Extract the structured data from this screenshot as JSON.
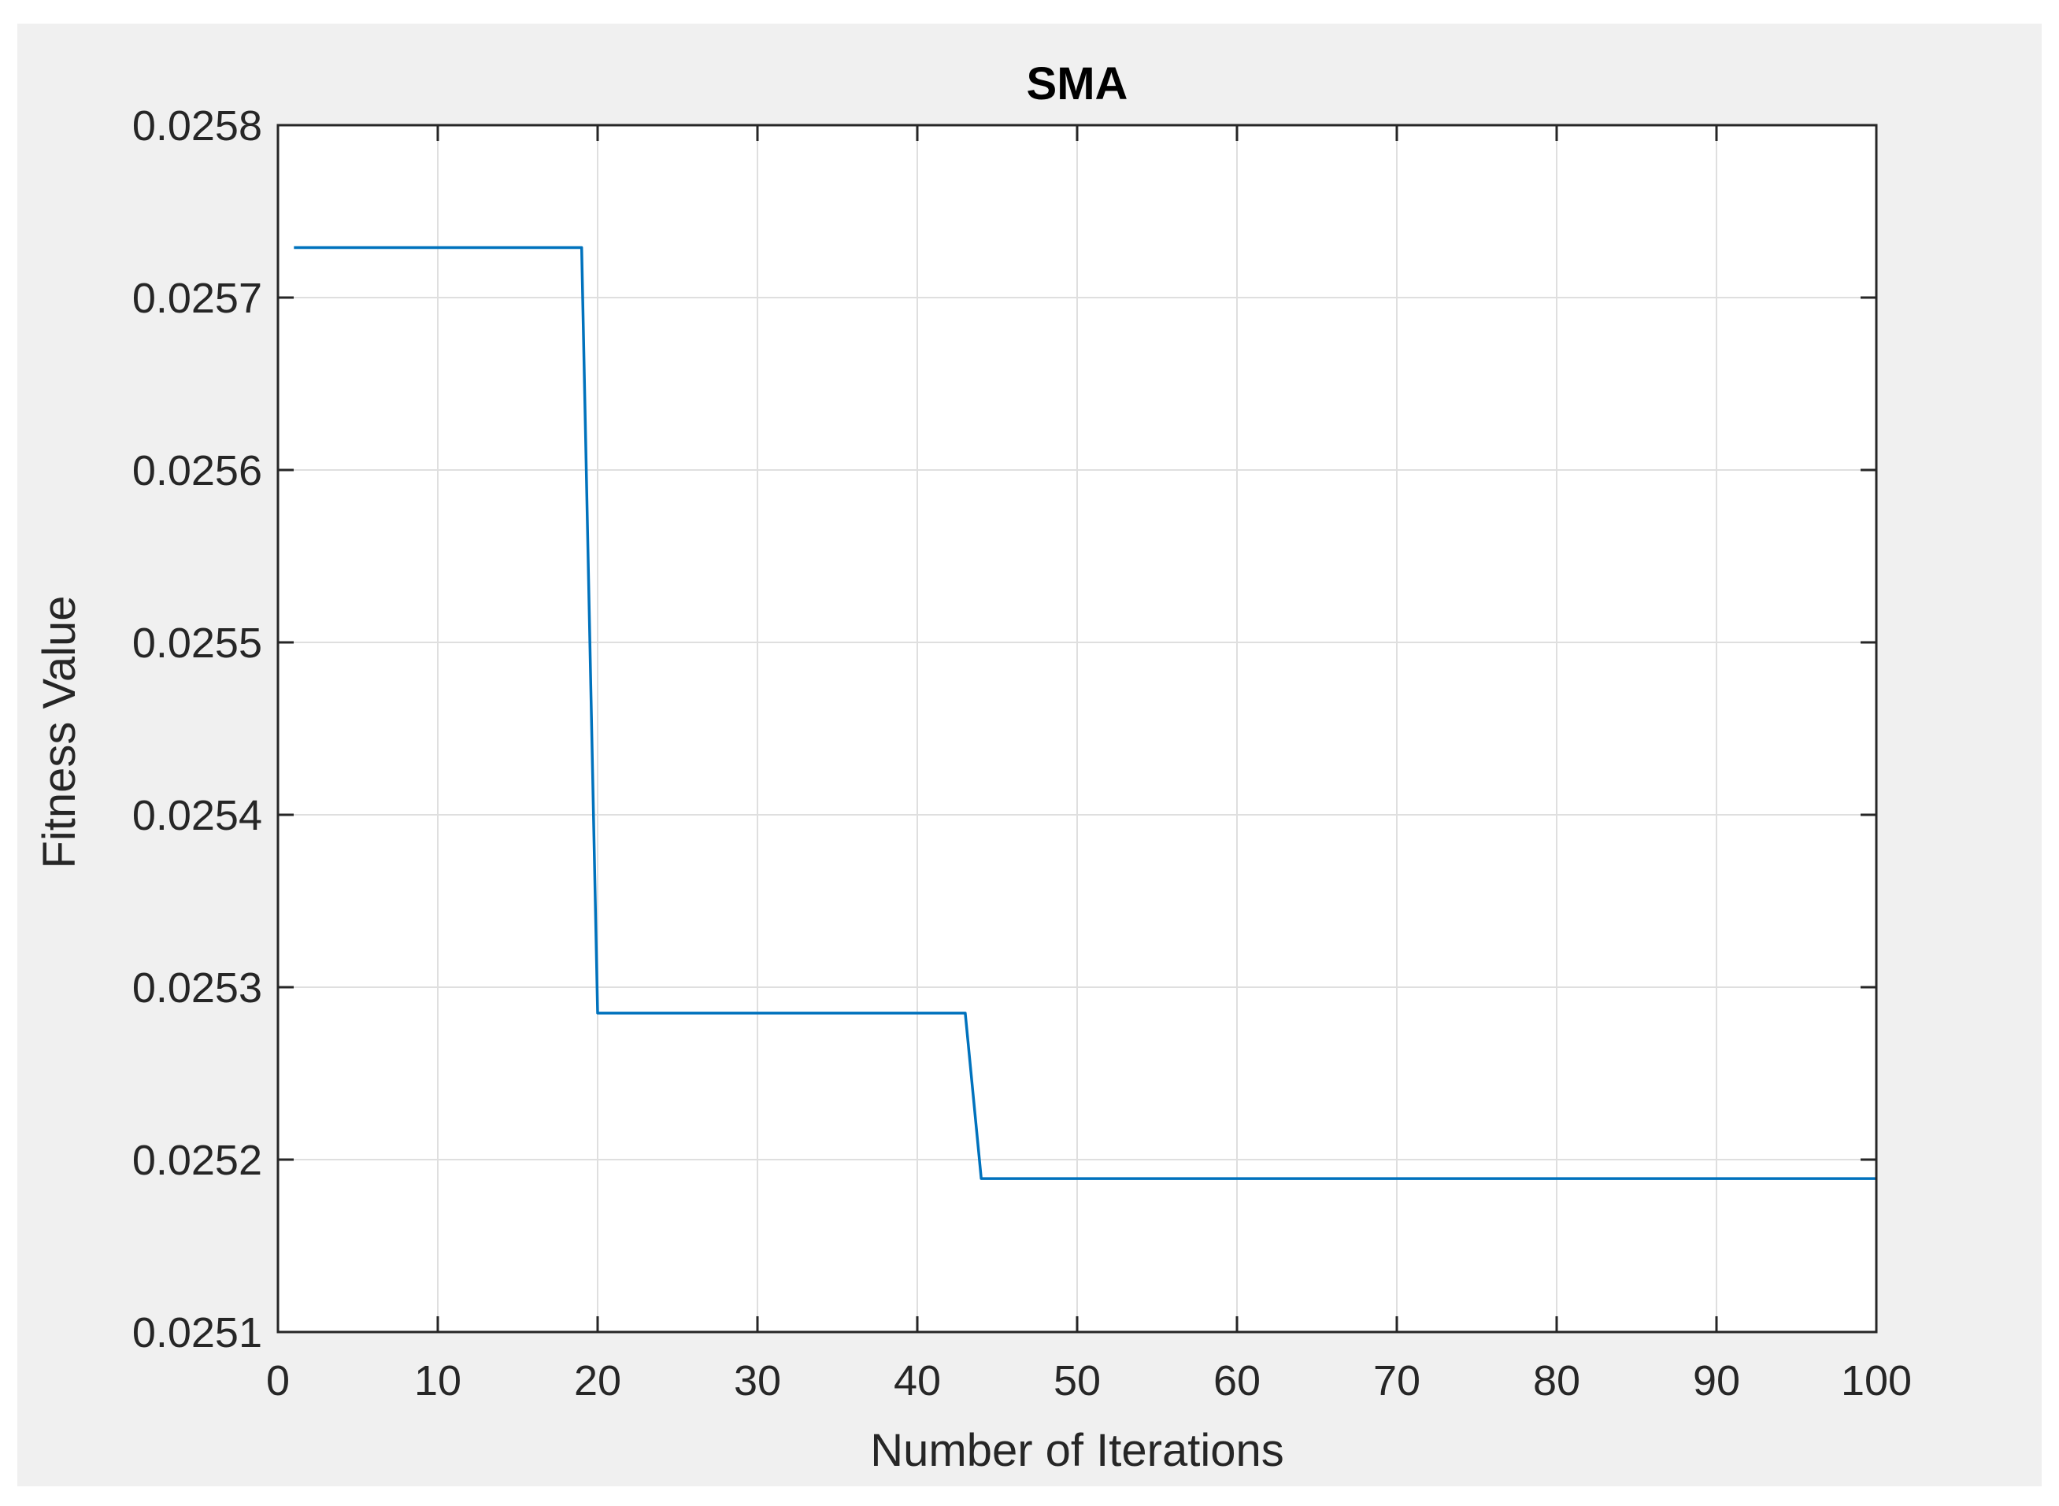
{
  "chart_data": {
    "type": "line",
    "title": "SMA",
    "xlabel": "Number of Iterations",
    "ylabel": "Fitness Value",
    "xlim": [
      0,
      100
    ],
    "ylim": [
      0.0251,
      0.0258
    ],
    "xticks": [
      0,
      10,
      20,
      30,
      40,
      50,
      60,
      70,
      80,
      90,
      100
    ],
    "xtick_labels": [
      "0",
      "10",
      "20",
      "30",
      "40",
      "50",
      "60",
      "70",
      "80",
      "90",
      "100"
    ],
    "yticks": [
      0.0251,
      0.0252,
      0.0253,
      0.0254,
      0.0255,
      0.0256,
      0.0257,
      0.0258
    ],
    "ytick_labels": [
      "0.0251",
      "0.0252",
      "0.0253",
      "0.0254",
      "0.0255",
      "0.0256",
      "0.0257",
      "0.0258"
    ],
    "grid": true,
    "legend": null,
    "series": [
      {
        "color": "#0072bd",
        "x": [
          1,
          19,
          20,
          43,
          44,
          100
        ],
        "y": [
          0.025729,
          0.025729,
          0.025285,
          0.025285,
          0.025189,
          0.025189
        ]
      }
    ]
  }
}
